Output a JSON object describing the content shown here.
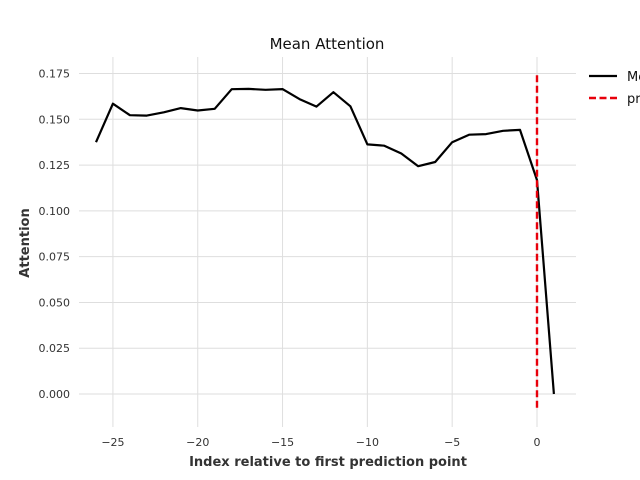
{
  "chart_data": {
    "type": "line",
    "title": "Mean Attention",
    "xlabel": "Index relative to first prediction point",
    "ylabel": "Attention",
    "xlim": [
      -27,
      2.3
    ],
    "ylim": [
      -0.018,
      0.184
    ],
    "x_ticks": [
      -25,
      -20,
      -15,
      -10,
      -5,
      0
    ],
    "x_tick_labels": [
      "−25",
      "−20",
      "−15",
      "−10",
      "−5",
      "0"
    ],
    "y_ticks": [
      0.0,
      0.025,
      0.05,
      0.075,
      0.1,
      0.125,
      0.15,
      0.175
    ],
    "y_tick_labels": [
      "0.000",
      "0.025",
      "0.050",
      "0.075",
      "0.100",
      "0.125",
      "0.150",
      "0.175"
    ],
    "grid": true,
    "legend_position": "outside-top-right",
    "series": [
      {
        "name": "Me",
        "style": "solid",
        "color": "#000000",
        "x": [
          -26,
          -25,
          -24,
          -23,
          -22,
          -21,
          -20,
          -19,
          -18,
          -17,
          -16,
          -15,
          -14,
          -13,
          -12,
          -11,
          -10,
          -9,
          -8,
          -7,
          -6,
          -5,
          -4,
          -3,
          -2,
          -1,
          0,
          1
        ],
        "y": [
          0.1375,
          0.1585,
          0.1522,
          0.152,
          0.1538,
          0.1561,
          0.1548,
          0.1557,
          0.1664,
          0.1666,
          0.1661,
          0.1665,
          0.161,
          0.1569,
          0.1648,
          0.1571,
          0.1363,
          0.1356,
          0.1313,
          0.1244,
          0.1267,
          0.1375,
          0.1416,
          0.1419,
          0.1437,
          0.1442,
          0.1168,
          0.0
        ]
      },
      {
        "name": "pr",
        "style": "dashed",
        "color": "#e8000b",
        "x": [
          0,
          0
        ],
        "y": [
          -0.0075,
          0.1745
        ]
      }
    ]
  }
}
